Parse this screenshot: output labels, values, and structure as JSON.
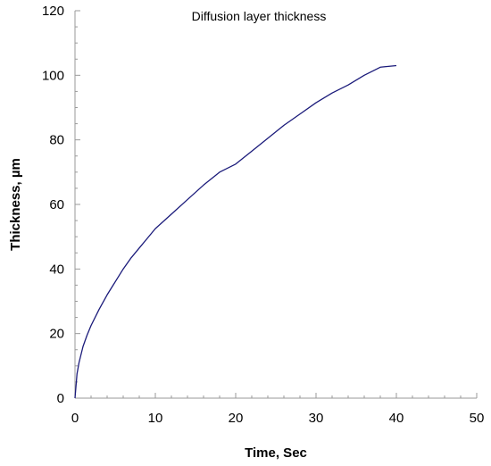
{
  "chart_data": {
    "type": "line",
    "title": "Diffusion layer thickness",
    "xlabel": "Time, Sec",
    "ylabel": "Thickness, µm",
    "xlim": [
      0,
      50
    ],
    "ylim": [
      0,
      120
    ],
    "x_ticks": [
      0,
      10,
      20,
      30,
      40,
      50
    ],
    "y_ticks": [
      0,
      20,
      40,
      60,
      80,
      100,
      120
    ],
    "grid": false,
    "legend": "none",
    "series": [
      {
        "color": "#1a1a7a",
        "x": [
          0,
          0.25,
          0.5,
          1,
          1.5,
          2,
          3,
          4,
          5,
          6,
          7,
          8,
          9,
          10,
          12,
          14,
          16,
          18,
          20,
          22,
          24,
          26,
          28,
          30,
          32,
          34,
          36,
          38,
          40
        ],
        "y": [
          0,
          7.5,
          11,
          16,
          19.5,
          22.5,
          27.5,
          32,
          36,
          40,
          43.5,
          46.5,
          49.5,
          52.5,
          57,
          61.5,
          66,
          70,
          72.5,
          76.5,
          80.5,
          84.5,
          88,
          91.5,
          94.5,
          97,
          100,
          102.5,
          103
        ]
      }
    ]
  }
}
